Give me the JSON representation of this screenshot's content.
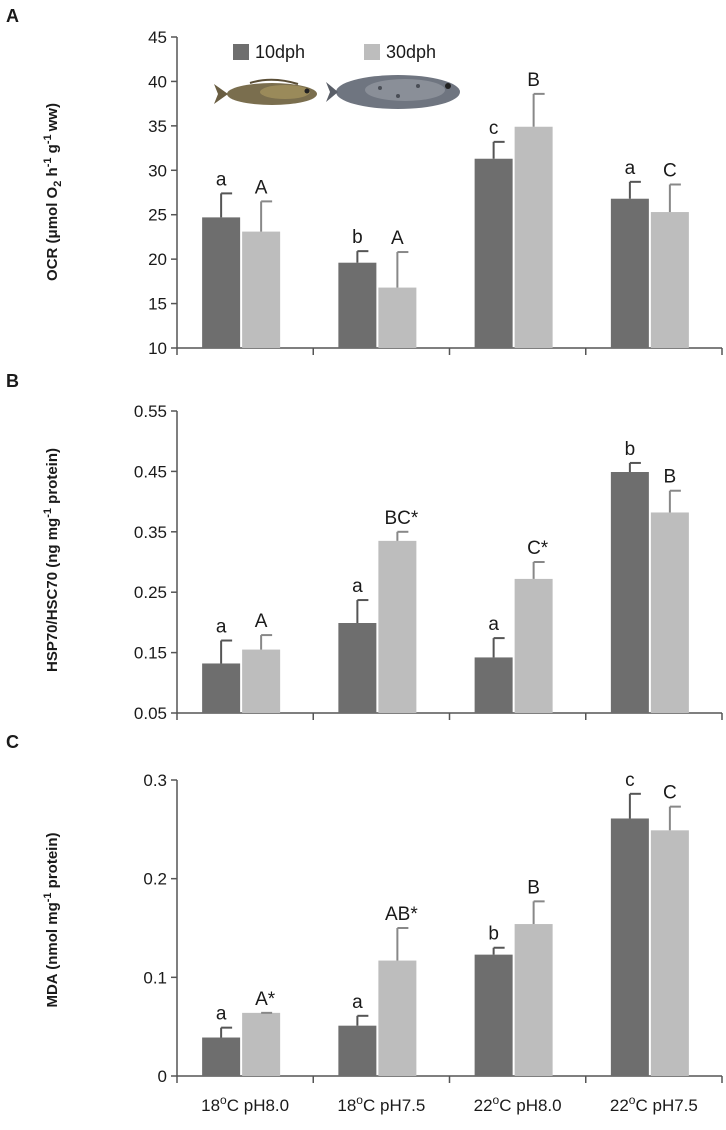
{
  "chart_data": [
    {
      "panel": "A",
      "type": "bar",
      "ylabel_main": "OCR (μmol O",
      "ylabel_sub": "2",
      "ylabel_rest": " h",
      "ylabel_sup1": "-1",
      "ylabel_mid": " g",
      "ylabel_sup2": "-1",
      "ylabel_end": "ww)",
      "ylim": [
        10,
        45
      ],
      "yticks": [
        "10",
        "15",
        "20",
        "25",
        "30",
        "35",
        "40",
        "45"
      ],
      "ytick_values": [
        10,
        15,
        20,
        25,
        30,
        35,
        40,
        45
      ],
      "series": [
        {
          "name": "10dph",
          "values": [
            24.7,
            19.6,
            31.3,
            26.8
          ],
          "errors": [
            2.7,
            1.3,
            1.9,
            1.9
          ],
          "labels": [
            "a",
            "b",
            "c",
            "a"
          ]
        },
        {
          "name": "30dph",
          "values": [
            23.1,
            16.8,
            34.9,
            25.3
          ],
          "errors": [
            3.4,
            4.0,
            3.7,
            3.1
          ],
          "labels": [
            "A",
            "A",
            "B",
            "C"
          ]
        }
      ]
    },
    {
      "panel": "B",
      "type": "bar",
      "ylabel_main": "HSP70/HSC70  (ng mg",
      "ylabel_sup1": "-1",
      "ylabel_end": " protein)",
      "ylim": [
        0.05,
        0.55
      ],
      "yticks": [
        "0.05",
        "0.15",
        "0.25",
        "0.35",
        "0.45",
        "0.55"
      ],
      "ytick_values": [
        0.05,
        0.15,
        0.25,
        0.35,
        0.45,
        0.55
      ],
      "series": [
        {
          "name": "10dph",
          "values": [
            0.132,
            0.199,
            0.142,
            0.449
          ],
          "errors": [
            0.038,
            0.038,
            0.032,
            0.015
          ],
          "labels": [
            "a",
            "a",
            "a",
            "b"
          ]
        },
        {
          "name": "30dph",
          "values": [
            0.155,
            0.335,
            0.272,
            0.382
          ],
          "errors": [
            0.024,
            0.015,
            0.028,
            0.036
          ],
          "labels": [
            "A",
            "BC*",
            "C*",
            "B"
          ]
        }
      ]
    },
    {
      "panel": "C",
      "type": "bar",
      "ylabel_main": "MDA (nmol mg",
      "ylabel_sup1": "-1",
      "ylabel_end": " protein)",
      "ylim": [
        0,
        0.3
      ],
      "yticks": [
        "0",
        "0.1",
        "0.2",
        "0.3"
      ],
      "ytick_values": [
        0,
        0.1,
        0.2,
        0.3
      ],
      "series": [
        {
          "name": "10dph",
          "values": [
            0.039,
            0.051,
            0.123,
            0.261
          ],
          "errors": [
            0.01,
            0.01,
            0.007,
            0.025
          ],
          "labels": [
            "a",
            "a",
            "b",
            "c"
          ]
        },
        {
          "name": "30dph",
          "values": [
            0.064,
            0.117,
            0.154,
            0.249
          ],
          "errors": [
            0.0,
            0.033,
            0.023,
            0.024
          ],
          "labels": [
            "A*",
            "AB*",
            "B",
            "C"
          ]
        }
      ]
    }
  ],
  "categories": [
    {
      "temp": "18",
      "sup": "o",
      "unit": "C pH8.0"
    },
    {
      "temp": "18",
      "sup": "o",
      "unit": "C pH7.5"
    },
    {
      "temp": "22",
      "sup": "o",
      "unit": "C pH8.0"
    },
    {
      "temp": "22",
      "sup": "o",
      "unit": "C pH7.5"
    }
  ],
  "legend": {
    "series1": "10dph",
    "series2": "30dph"
  },
  "colors": {
    "series1": "#6e6e6e",
    "series2": "#bdbdbd",
    "axis": "#555555"
  }
}
